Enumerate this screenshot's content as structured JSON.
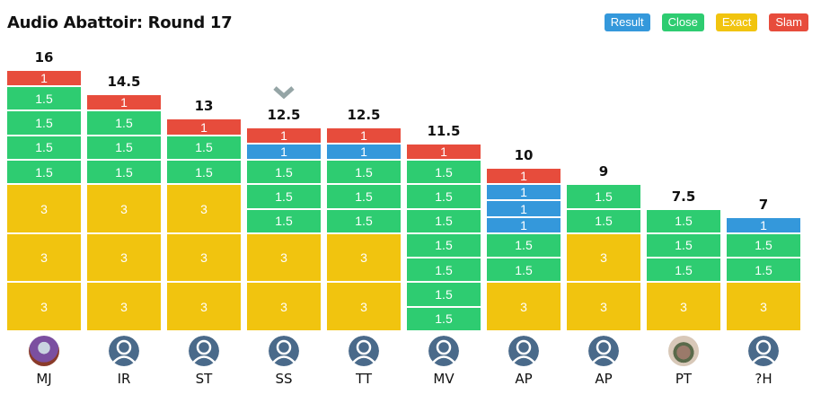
{
  "title": "Audio Abattoir: Round 17",
  "legend": [
    {
      "label": "Result",
      "color": "#3498db"
    },
    {
      "label": "Close",
      "color": "#2ecc71"
    },
    {
      "label": "Exact",
      "color": "#f1c40f"
    },
    {
      "label": "Slam",
      "color": "#e74c3c"
    }
  ],
  "players": [
    {
      "name": "MJ",
      "total": "16",
      "avatar": "photo",
      "segments": [
        [
          "exact",
          "3"
        ],
        [
          "exact",
          "3"
        ],
        [
          "exact",
          "3"
        ],
        [
          "close",
          "1.5"
        ],
        [
          "close",
          "1.5"
        ],
        [
          "close",
          "1.5"
        ],
        [
          "close",
          "1.5"
        ],
        [
          "slam",
          "1"
        ]
      ]
    },
    {
      "name": "IR",
      "total": "14.5",
      "avatar": "default",
      "segments": [
        [
          "exact",
          "3"
        ],
        [
          "exact",
          "3"
        ],
        [
          "exact",
          "3"
        ],
        [
          "close",
          "1.5"
        ],
        [
          "close",
          "1.5"
        ],
        [
          "close",
          "1.5"
        ],
        [
          "slam",
          "1"
        ]
      ]
    },
    {
      "name": "ST",
      "total": "13",
      "avatar": "default",
      "segments": [
        [
          "exact",
          "3"
        ],
        [
          "exact",
          "3"
        ],
        [
          "exact",
          "3"
        ],
        [
          "close",
          "1.5"
        ],
        [
          "close",
          "1.5"
        ],
        [
          "slam",
          "1"
        ]
      ]
    },
    {
      "name": "SS",
      "total": "12.5",
      "avatar": "default",
      "marked": true,
      "segments": [
        [
          "exact",
          "3"
        ],
        [
          "exact",
          "3"
        ],
        [
          "close",
          "1.5"
        ],
        [
          "close",
          "1.5"
        ],
        [
          "close",
          "1.5"
        ],
        [
          "result",
          "1"
        ],
        [
          "slam",
          "1"
        ]
      ]
    },
    {
      "name": "TT",
      "total": "12.5",
      "avatar": "default",
      "segments": [
        [
          "exact",
          "3"
        ],
        [
          "exact",
          "3"
        ],
        [
          "close",
          "1.5"
        ],
        [
          "close",
          "1.5"
        ],
        [
          "close",
          "1.5"
        ],
        [
          "result",
          "1"
        ],
        [
          "slam",
          "1"
        ]
      ]
    },
    {
      "name": "MV",
      "total": "11.5",
      "avatar": "default",
      "segments": [
        [
          "close",
          "1.5"
        ],
        [
          "close",
          "1.5"
        ],
        [
          "close",
          "1.5"
        ],
        [
          "close",
          "1.5"
        ],
        [
          "close",
          "1.5"
        ],
        [
          "close",
          "1.5"
        ],
        [
          "close",
          "1.5"
        ],
        [
          "slam",
          "1"
        ]
      ]
    },
    {
      "name": "AP",
      "total": "10",
      "avatar": "default",
      "segments": [
        [
          "exact",
          "3"
        ],
        [
          "close",
          "1.5"
        ],
        [
          "close",
          "1.5"
        ],
        [
          "result",
          "1"
        ],
        [
          "result",
          "1"
        ],
        [
          "result",
          "1"
        ],
        [
          "slam",
          "1"
        ]
      ]
    },
    {
      "name": "AP",
      "total": "9",
      "avatar": "default",
      "segments": [
        [
          "exact",
          "3"
        ],
        [
          "exact",
          "3"
        ],
        [
          "close",
          "1.5"
        ],
        [
          "close",
          "1.5"
        ]
      ]
    },
    {
      "name": "PT",
      "total": "7.5",
      "avatar": "photo2",
      "segments": [
        [
          "exact",
          "3"
        ],
        [
          "close",
          "1.5"
        ],
        [
          "close",
          "1.5"
        ],
        [
          "close",
          "1.5"
        ]
      ]
    },
    {
      "name": "?H",
      "total": "7",
      "avatar": "default",
      "segments": [
        [
          "exact",
          "3"
        ],
        [
          "close",
          "1.5"
        ],
        [
          "close",
          "1.5"
        ],
        [
          "result",
          "1"
        ]
      ]
    }
  ]
}
